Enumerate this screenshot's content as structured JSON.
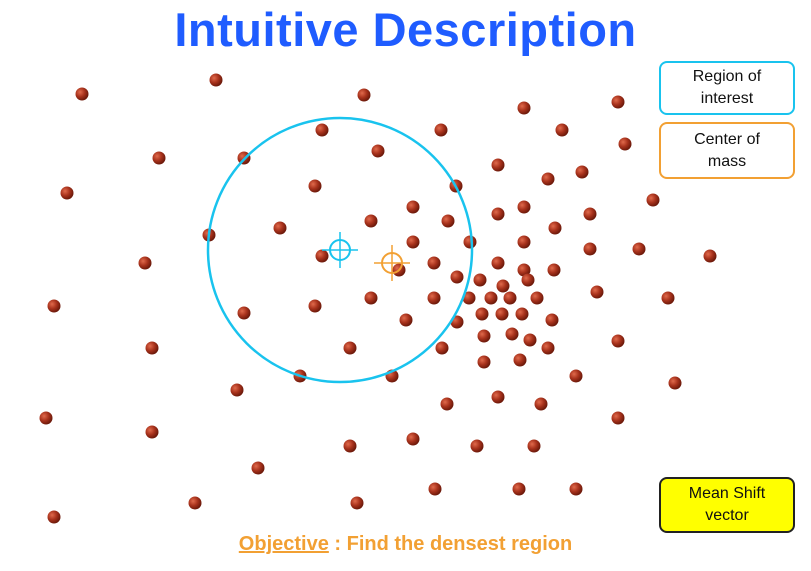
{
  "title": "Intuitive Description",
  "legend": {
    "region_of_interest": "Region of\ninterest",
    "center_of_mass": "Center of\nmass",
    "mean_shift_vector": "Mean Shift\nvector"
  },
  "objective": {
    "keyword": "Objective",
    "separator": " : ",
    "text": "Find the densest region"
  },
  "colors": {
    "title": "#1f5cff",
    "point": "#a8321c",
    "region": "#19c3ee",
    "center_of_mass": "#f2a033",
    "mean_shift_box": "#ffff00"
  },
  "points": [
    [
      82,
      94
    ],
    [
      216,
      80
    ],
    [
      364,
      95
    ],
    [
      524,
      108
    ],
    [
      618,
      102
    ],
    [
      322,
      130
    ],
    [
      441,
      130
    ],
    [
      562,
      130
    ],
    [
      159,
      158
    ],
    [
      244,
      158
    ],
    [
      378,
      151
    ],
    [
      625,
      144
    ],
    [
      67,
      193
    ],
    [
      315,
      186
    ],
    [
      456,
      186
    ],
    [
      498,
      165
    ],
    [
      548,
      179
    ],
    [
      582,
      172
    ],
    [
      413,
      207
    ],
    [
      371,
      221
    ],
    [
      448,
      221
    ],
    [
      498,
      214
    ],
    [
      524,
      207
    ],
    [
      590,
      214
    ],
    [
      653,
      200
    ],
    [
      209,
      235
    ],
    [
      280,
      228
    ],
    [
      413,
      242
    ],
    [
      470,
      242
    ],
    [
      524,
      242
    ],
    [
      555,
      228
    ],
    [
      145,
      263
    ],
    [
      322,
      256
    ],
    [
      399,
      270
    ],
    [
      434,
      263
    ],
    [
      498,
      263
    ],
    [
      524,
      270
    ],
    [
      590,
      249
    ],
    [
      639,
      249
    ],
    [
      710,
      256
    ],
    [
      457,
      277
    ],
    [
      480,
      280
    ],
    [
      503,
      286
    ],
    [
      528,
      280
    ],
    [
      554,
      270
    ],
    [
      54,
      306
    ],
    [
      244,
      313
    ],
    [
      315,
      306
    ],
    [
      371,
      298
    ],
    [
      434,
      298
    ],
    [
      469,
      298
    ],
    [
      491,
      298
    ],
    [
      510,
      298
    ],
    [
      537,
      298
    ],
    [
      597,
      292
    ],
    [
      668,
      298
    ],
    [
      406,
      320
    ],
    [
      457,
      322
    ],
    [
      482,
      314
    ],
    [
      502,
      314
    ],
    [
      522,
      314
    ],
    [
      552,
      320
    ],
    [
      484,
      336
    ],
    [
      512,
      334
    ],
    [
      530,
      340
    ],
    [
      152,
      348
    ],
    [
      350,
      348
    ],
    [
      442,
      348
    ],
    [
      548,
      348
    ],
    [
      618,
      341
    ],
    [
      300,
      376
    ],
    [
      392,
      376
    ],
    [
      484,
      362
    ],
    [
      520,
      360
    ],
    [
      576,
      376
    ],
    [
      675,
      383
    ],
    [
      237,
      390
    ],
    [
      447,
      404
    ],
    [
      498,
      397
    ],
    [
      541,
      404
    ],
    [
      46,
      418
    ],
    [
      152,
      432
    ],
    [
      413,
      439
    ],
    [
      477,
      446
    ],
    [
      534,
      446
    ],
    [
      618,
      418
    ],
    [
      350,
      446
    ],
    [
      258,
      468
    ],
    [
      195,
      503
    ],
    [
      357,
      503
    ],
    [
      435,
      489
    ],
    [
      519,
      489
    ],
    [
      576,
      489
    ],
    [
      54,
      517
    ]
  ],
  "region_of_interest_center": [
    340,
    250
  ],
  "region_of_interest_radius": 132,
  "center_of_mass_point": [
    392,
    263
  ]
}
